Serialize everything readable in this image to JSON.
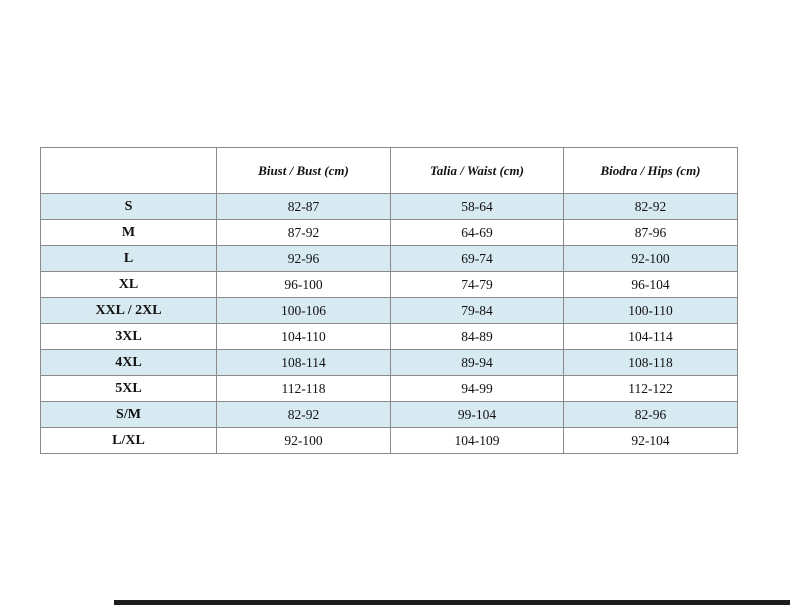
{
  "chart_data": {
    "type": "table",
    "title": "",
    "columns": [
      "",
      "Biust / Bust (cm)",
      "Talia / Waist (cm)",
      "Biodra / Hips (cm)"
    ],
    "rows": [
      [
        "S",
        "82-87",
        "58-64",
        "82-92"
      ],
      [
        "M",
        "87-92",
        "64-69",
        "87-96"
      ],
      [
        "L",
        "92-96",
        "69-74",
        "92-100"
      ],
      [
        "XL",
        "96-100",
        "74-79",
        "96-104"
      ],
      [
        "XXL / 2XL",
        "100-106",
        "79-84",
        "100-110"
      ],
      [
        "3XL",
        "104-110",
        "84-89",
        "104-114"
      ],
      [
        "4XL",
        "108-114",
        "89-94",
        "108-118"
      ],
      [
        "5XL",
        "112-118",
        "94-99",
        "112-122"
      ],
      [
        "S/M",
        "82-92",
        "99-104",
        "82-96"
      ],
      [
        "L/XL",
        "92-100",
        "104-109",
        "92-104"
      ]
    ],
    "layout": {
      "alternating_row_highlight": "odd-data-rows-starting-with-first",
      "grid": true
    }
  },
  "colors": {
    "highlight": "#d7e9f1",
    "border": "#8a8a8a",
    "bottom_bar": "#1c1c1c"
  }
}
